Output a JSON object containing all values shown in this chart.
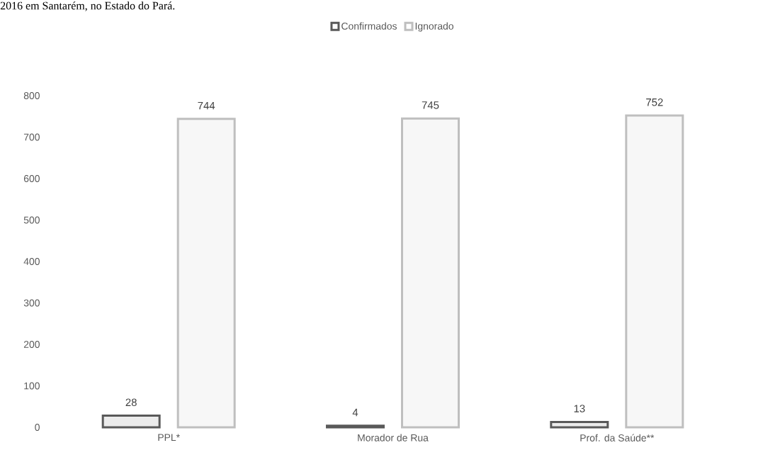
{
  "chart_data": {
    "type": "bar",
    "annotations": [
      "2016 em Santarém, no Estado do Pará."
    ],
    "categories": [
      "PPL*",
      "Morador de Rua",
      "Prof. da Saúde**"
    ],
    "series": [
      {
        "name": "Confirmados",
        "color": "#595959",
        "values": [
          28,
          4,
          13
        ]
      },
      {
        "name": "Ignorado",
        "color": "#bfbfbf",
        "values": [
          744,
          745,
          752
        ]
      }
    ],
    "ylim": [
      0,
      800
    ],
    "yticks": [
      0,
      100,
      200,
      300,
      400,
      500,
      600,
      700,
      800
    ],
    "data_labels": true,
    "legend": "top",
    "grid": false
  }
}
